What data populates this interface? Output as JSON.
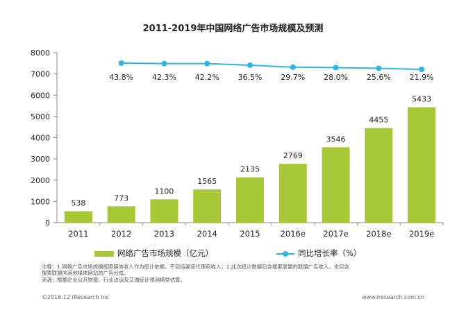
{
  "colors": {
    "bar": "#a6c837",
    "line": "#2ab7e3",
    "text": "#222222"
  },
  "chart_data": {
    "type": "bar",
    "title": "2011-2019年中国网络广告市场规模及预测",
    "categories": [
      "2011",
      "2012",
      "2013",
      "2014",
      "2015",
      "2016e",
      "2017e",
      "2018e",
      "2019e"
    ],
    "ylim": [
      0,
      8000
    ],
    "yticks": [
      0,
      1000,
      2000,
      3000,
      4000,
      5000,
      6000,
      7000,
      8000
    ],
    "series": [
      {
        "name": "网络广告市场规模（亿元）",
        "type": "bar",
        "values": [
          538,
          773,
          1100,
          1565,
          2135,
          2769,
          3546,
          4455,
          5433
        ]
      },
      {
        "name": "同比增长率（%）",
        "type": "line",
        "axis": "secondary",
        "values": [
          null,
          43.8,
          42.3,
          42.2,
          36.5,
          29.7,
          28.0,
          25.6,
          21.9
        ],
        "labels": [
          "",
          "43.8%",
          "42.3%",
          "42.2%",
          "36.5%",
          "29.7%",
          "28.0%",
          "25.6%",
          "21.9%"
        ]
      }
    ]
  },
  "legend": {
    "bar_label": "网络广告市场规模（亿元）",
    "line_label": "同比增长率（%）"
  },
  "notes": {
    "line1": "注释：1.网络广告市场规模按照媒体收入作为统计依据，不包括渠道代理商收入；2.此次统计数据包含搜索联盟的联盟广告收入，也包含",
    "line2": "搜索联盟向其他媒体网站的广告分成。",
    "line3": "来源：根据企业公开财报、行业访谈及艾瑞统计预测模型估算。"
  },
  "footer": {
    "left": "©2016.12 iResearch Inc",
    "right": "www.iresearch.com.cn"
  }
}
